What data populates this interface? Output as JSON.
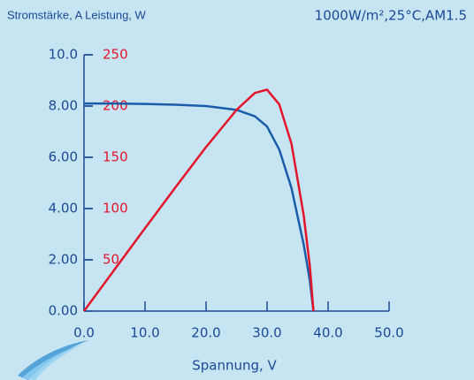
{
  "chart_data": {
    "type": "line",
    "y_label": "Stromstärke, A Leistung, W",
    "annotation": "1000W/m²,25°C,AM1.5",
    "x_label": "Spannung, V",
    "x": [
      0,
      5,
      10,
      15,
      20,
      25,
      28,
      30,
      32,
      34,
      36,
      37,
      37.6
    ],
    "series": [
      {
        "name": "Stromstärke",
        "color": "#1a5ca8",
        "axis": "y",
        "values": [
          8.1,
          8.1,
          8.08,
          8.05,
          8.0,
          7.85,
          7.6,
          7.2,
          6.3,
          4.8,
          2.6,
          1.2,
          0
        ]
      },
      {
        "name": "Leistung",
        "color": "#e3152b",
        "axis": "y2",
        "values": [
          0,
          40.5,
          80.8,
          120.75,
          160,
          196.25,
          212.8,
          216,
          201.6,
          163.2,
          93.6,
          44.4,
          0
        ]
      }
    ],
    "xlim": [
      0,
      50
    ],
    "xticks": [
      {
        "value": 0,
        "label": "0.0"
      },
      {
        "value": 10,
        "label": "10.0"
      },
      {
        "value": 20,
        "label": "20.0"
      },
      {
        "value": 30,
        "label": "30.0"
      },
      {
        "value": 40,
        "label": "40.0"
      },
      {
        "value": 50,
        "label": "50.0"
      }
    ],
    "ylim": [
      0,
      10
    ],
    "yticks": [
      {
        "value": 0,
        "label": "0.00"
      },
      {
        "value": 2,
        "label": "2.00"
      },
      {
        "value": 4,
        "label": "4.00"
      },
      {
        "value": 6,
        "label": "6.00"
      },
      {
        "value": 8,
        "label": "8.00"
      },
      {
        "value": 10,
        "label": "10.0"
      }
    ],
    "y2lim": [
      0,
      250
    ],
    "y2ticks": [
      50,
      100,
      150,
      200,
      250
    ],
    "y2_color": "#e3152b",
    "axis_color": "#1a4a96"
  }
}
